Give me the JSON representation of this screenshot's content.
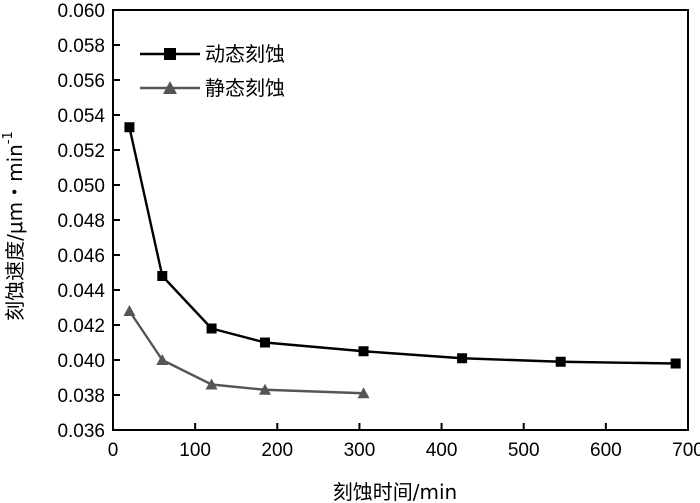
{
  "chart_data": {
    "type": "line",
    "xlabel": "刻蚀时间/min",
    "ylabel_main": "刻蚀速度/μm・min",
    "ylabel_sup": "-1",
    "xlim": [
      0,
      700
    ],
    "ylim": [
      0.036,
      0.06
    ],
    "x_ticks": [
      0,
      100,
      200,
      300,
      400,
      500,
      600,
      700
    ],
    "x_tick_labels": [
      "0",
      "100",
      "200",
      "300",
      "400",
      "500",
      "600",
      "700"
    ],
    "y_ticks": [
      0.036,
      0.038,
      0.04,
      0.042,
      0.044,
      0.046,
      0.048,
      0.05,
      0.052,
      0.054,
      0.056,
      0.058,
      0.06
    ],
    "y_tick_labels": [
      "0.036",
      "0.038",
      "0.040",
      "0.042",
      "0.044",
      "0.046",
      "0.048",
      "0.050",
      "0.052",
      "0.054",
      "0.056",
      "0.058",
      "0.060"
    ],
    "grid": false,
    "legend_position": "top-left",
    "series": [
      {
        "name": "动态刻蚀",
        "marker": "square",
        "color": "#000000",
        "x": [
          20,
          60,
          120,
          185,
          305,
          425,
          545,
          685
        ],
        "y": [
          0.0533,
          0.0448,
          0.0418,
          0.041,
          0.0405,
          0.0401,
          0.0399,
          0.0398
        ]
      },
      {
        "name": "静态刻蚀",
        "marker": "triangle",
        "color": "#555555",
        "x": [
          20,
          60,
          120,
          185,
          305
        ],
        "y": [
          0.0428,
          0.04,
          0.0386,
          0.0383,
          0.0381
        ]
      }
    ]
  }
}
